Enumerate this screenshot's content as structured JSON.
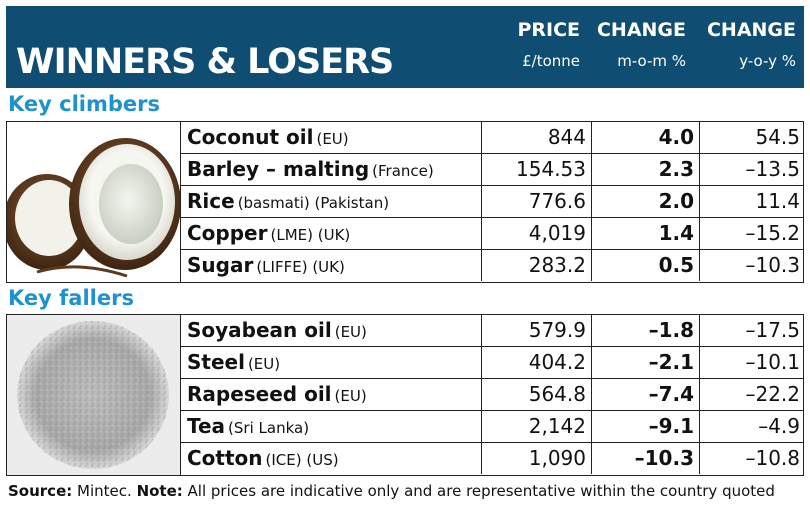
{
  "title": "WINNERS & LOSERS",
  "columns": {
    "price": {
      "label": "PRICE",
      "unit": "£/tonne"
    },
    "mom": {
      "label": "CHANGE",
      "unit": "m-o-m %"
    },
    "yoy": {
      "label": "CHANGE",
      "unit": "y-o-y %"
    }
  },
  "sections": [
    {
      "label": "Key climbers",
      "image_icon": "coconut-image",
      "rows": [
        {
          "name": "Coconut oil",
          "qualifier": "(EU)",
          "price": "844",
          "mom": "4.0",
          "yoy": "54.5"
        },
        {
          "name": "Barley – malting",
          "qualifier": "(France)",
          "price": "154.53",
          "mom": "2.3",
          "yoy": "–13.5"
        },
        {
          "name": "Rice",
          "qualifier": "(basmati) (Pakistan)",
          "price": "776.6",
          "mom": "2.0",
          "yoy": "11.4"
        },
        {
          "name": "Copper",
          "qualifier": "(LME) (UK)",
          "price": "4,019",
          "mom": "1.4",
          "yoy": "–15.2"
        },
        {
          "name": "Sugar",
          "qualifier": "(LIFFE) (UK)",
          "price": "283.2",
          "mom": "0.5",
          "yoy": "–10.3"
        }
      ]
    },
    {
      "label": "Key fallers",
      "image_icon": "cotton-texture-image",
      "rows": [
        {
          "name": "Soyabean oil",
          "qualifier": "(EU)",
          "price": "579.9",
          "mom": "–1.8",
          "yoy": "–17.5"
        },
        {
          "name": "Steel",
          "qualifier": "(EU)",
          "price": "404.2",
          "mom": "–2.1",
          "yoy": "–10.1"
        },
        {
          "name": "Rapeseed oil",
          "qualifier": "(EU)",
          "price": "564.8",
          "mom": "–7.4",
          "yoy": "–22.2"
        },
        {
          "name": "Tea",
          "qualifier": "(Sri Lanka)",
          "price": "2,142",
          "mom": "–9.1",
          "yoy": "–4.9"
        },
        {
          "name": "Cotton",
          "qualifier": "(ICE) (US)",
          "price": "1,090",
          "mom": "–10.3",
          "yoy": "–10.8"
        }
      ]
    }
  ],
  "footer": {
    "source_label": "Source:",
    "source": "Mintec.",
    "note_label": "Note:",
    "note": "All prices are indicative only and are representative within the country quoted"
  },
  "colors": {
    "header_bg": "#0f4d72",
    "section_label": "#1e92cd"
  }
}
